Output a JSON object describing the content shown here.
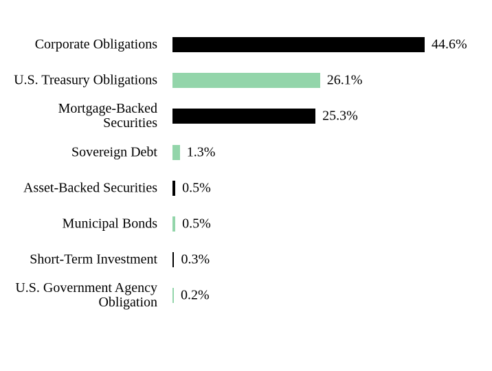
{
  "chart_data": {
    "type": "bar",
    "orientation": "horizontal",
    "categories": [
      [
        "Corporate Obligations"
      ],
      [
        "U.S. Treasury Obligations"
      ],
      [
        "Mortgage-Backed",
        "Securities"
      ],
      [
        "Sovereign Debt"
      ],
      [
        "Asset-Backed Securities"
      ],
      [
        "Municipal Bonds"
      ],
      [
        "Short-Term Investment"
      ],
      [
        "U.S. Government Agency",
        "Obligation"
      ]
    ],
    "values": [
      44.6,
      26.1,
      25.3,
      1.3,
      0.5,
      0.5,
      0.3,
      0.2
    ],
    "value_labels": [
      "44.6%",
      "26.1%",
      "25.3%",
      "1.3%",
      "0.5%",
      "0.5%",
      "0.3%",
      "0.2%"
    ],
    "colors": [
      "#000000",
      "#93d5aa",
      "#000000",
      "#93d5aa",
      "#000000",
      "#93d5aa",
      "#000000",
      "#93d5aa"
    ],
    "xlim": [
      0,
      44.6
    ],
    "grid": false,
    "legend": "none",
    "title": "",
    "xlabel": "",
    "ylabel": ""
  }
}
